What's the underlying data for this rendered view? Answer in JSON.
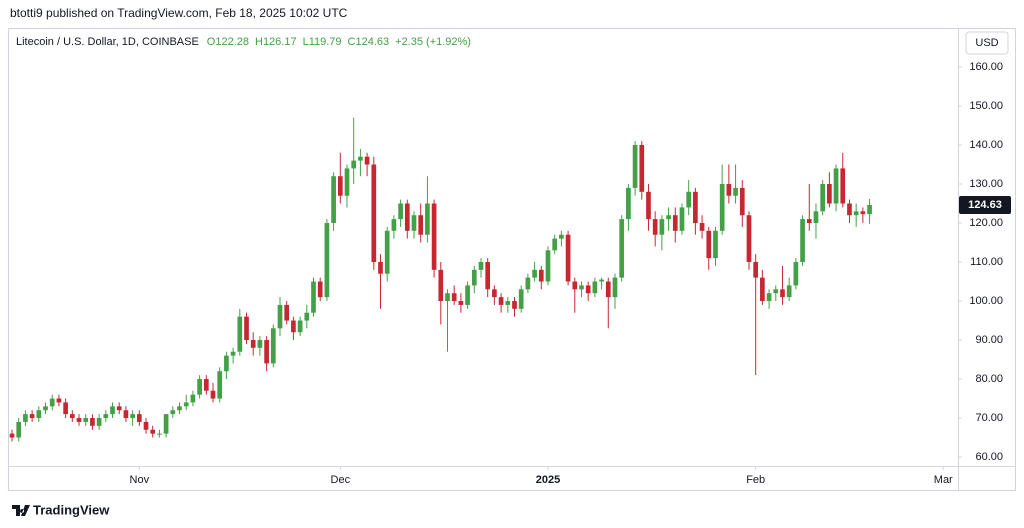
{
  "header": {
    "published": "btotti9 published on TradingView.com, Feb 18, 2025 10:02 UTC",
    "brand": "TradingView"
  },
  "chart_data": {
    "type": "candlestick",
    "title": "Litecoin / U.S. Dollar, 1D, COINBASE",
    "ohlc_legend": [
      "O122.28",
      "H126.17",
      "L119.79",
      "C124.63",
      "+2.35 (+1.92%)"
    ],
    "currency": "USD",
    "up_color": "#43a047",
    "down_color": "#c62832",
    "open": [
      66,
      65,
      69,
      71,
      70,
      72,
      73,
      75,
      74,
      71,
      70,
      69,
      70,
      68,
      70,
      71,
      73,
      72,
      70,
      71,
      69,
      67,
      66,
      66,
      71,
      72,
      73,
      74,
      76,
      80,
      77,
      75,
      82,
      86,
      87,
      96,
      90,
      88,
      90,
      84,
      93,
      99,
      95,
      92,
      95,
      97,
      105,
      101,
      120,
      132,
      127,
      134,
      136,
      137,
      135,
      110,
      107,
      118,
      121,
      125,
      118,
      122,
      117,
      125,
      108,
      100,
      102,
      100,
      99,
      104,
      108,
      110,
      103,
      101,
      99,
      100,
      98,
      103,
      106,
      108,
      105,
      113,
      116,
      117,
      105,
      103,
      104,
      102,
      105,
      105,
      101,
      106,
      121,
      129,
      140,
      128,
      121,
      117,
      121,
      122,
      118,
      124,
      128,
      120,
      118,
      111,
      118,
      130,
      127,
      129,
      122,
      110,
      106,
      100,
      102,
      103,
      101,
      104,
      110,
      121,
      120,
      123,
      130,
      125,
      134,
      125,
      122,
      123,
      122.28
    ],
    "high": [
      67,
      70,
      72,
      72,
      73,
      74,
      76,
      76,
      75,
      72,
      71,
      71,
      71,
      71,
      72,
      74,
      74,
      73,
      72,
      72,
      70,
      68,
      67,
      71,
      73,
      74,
      76,
      77,
      81,
      81,
      79,
      83,
      87,
      88,
      98,
      97,
      92,
      91,
      91,
      94,
      101,
      100,
      96,
      96,
      99,
      106,
      106,
      121,
      133,
      138,
      135,
      147,
      139,
      138,
      137,
      112,
      119,
      122,
      126,
      126,
      123,
      125,
      132,
      126,
      110,
      103,
      104,
      102,
      105,
      109,
      111,
      111,
      104,
      102,
      101,
      101,
      104,
      107,
      110,
      109,
      114,
      117,
      118,
      118,
      106,
      105,
      105,
      106,
      106,
      106,
      107,
      122,
      130,
      141,
      141,
      130,
      123,
      122,
      124,
      124,
      125,
      131,
      129,
      122,
      119,
      119,
      135,
      135,
      135,
      131,
      123,
      112,
      108,
      103,
      104,
      109,
      106,
      111,
      122,
      130,
      125,
      131,
      133,
      135,
      138,
      126,
      125,
      124,
      126.17
    ],
    "low": [
      64,
      64,
      68,
      69,
      69,
      71,
      72,
      73,
      70,
      69,
      68,
      68,
      67,
      67,
      69,
      70,
      71,
      69,
      68,
      68,
      66,
      65,
      65,
      65,
      70,
      71,
      72,
      73,
      75,
      76,
      74,
      74,
      80,
      84,
      86,
      89,
      86,
      86,
      82,
      83,
      91,
      94,
      90,
      91,
      93,
      96,
      100,
      100,
      118,
      125,
      124,
      130,
      132,
      132,
      108,
      98,
      105,
      116,
      119,
      116,
      116,
      115,
      115,
      106,
      94,
      87,
      99,
      97,
      98,
      102,
      106,
      101,
      99,
      97,
      97,
      96,
      97,
      102,
      105,
      103,
      104,
      112,
      114,
      104,
      97,
      101,
      100,
      101,
      103,
      93,
      98,
      105,
      118,
      127,
      126,
      118,
      114,
      113,
      118,
      115,
      117,
      122,
      117,
      116,
      108,
      109,
      117,
      125,
      125,
      119,
      108,
      81,
      99,
      98,
      100,
      99,
      100,
      103,
      109,
      118,
      116,
      122,
      124,
      123,
      124,
      120,
      119,
      120,
      119.79
    ],
    "close": [
      65,
      69,
      71,
      70,
      72,
      73,
      75,
      74,
      71,
      70,
      69,
      70,
      68,
      70,
      71,
      73,
      72,
      70,
      71,
      69,
      67,
      66,
      66,
      71,
      72,
      73,
      74,
      76,
      80,
      77,
      75,
      82,
      86,
      87,
      96,
      90,
      88,
      90,
      84,
      93,
      99,
      95,
      92,
      95,
      97,
      105,
      101,
      120,
      132,
      127,
      134,
      136,
      137,
      135,
      110,
      107,
      118,
      121,
      125,
      118,
      122,
      117,
      125,
      108,
      100,
      102,
      100,
      99,
      104,
      108,
      110,
      103,
      101,
      99,
      100,
      98,
      103,
      106,
      108,
      105,
      113,
      116,
      117,
      105,
      103,
      104,
      102,
      105,
      105.5,
      101,
      106,
      121,
      129,
      140,
      128,
      121,
      117,
      121,
      122,
      118,
      124,
      128,
      120,
      118,
      111,
      118,
      130,
      127,
      129,
      122,
      110,
      106,
      100,
      102,
      103,
      101,
      104,
      110,
      121,
      120,
      123,
      130,
      125,
      134,
      125,
      122,
      123,
      122.28,
      124.63
    ],
    "xlim": [
      -0.6,
      141.2
    ],
    "xticks": [
      {
        "value": 19,
        "label": "Nov"
      },
      {
        "value": 49,
        "label": "Dec"
      },
      {
        "value": 80,
        "label": "2025"
      },
      {
        "value": 111,
        "label": "Feb"
      },
      {
        "value": 139,
        "label": "Mar"
      }
    ],
    "ylim": [
      57.7,
      170
    ],
    "yticks": [
      {
        "value": 60,
        "label": "60.00"
      },
      {
        "value": 70,
        "label": "70.00"
      },
      {
        "value": 80,
        "label": "80.00"
      },
      {
        "value": 90,
        "label": "90.00"
      },
      {
        "value": 100,
        "label": "100.00"
      },
      {
        "value": 110,
        "label": "110.00"
      },
      {
        "value": 120,
        "label": "120.00"
      },
      {
        "value": 130,
        "label": "130.00"
      },
      {
        "value": 140,
        "label": "140.00"
      },
      {
        "value": 150,
        "label": "150.00"
      },
      {
        "value": 160,
        "label": "160.00"
      }
    ]
  }
}
